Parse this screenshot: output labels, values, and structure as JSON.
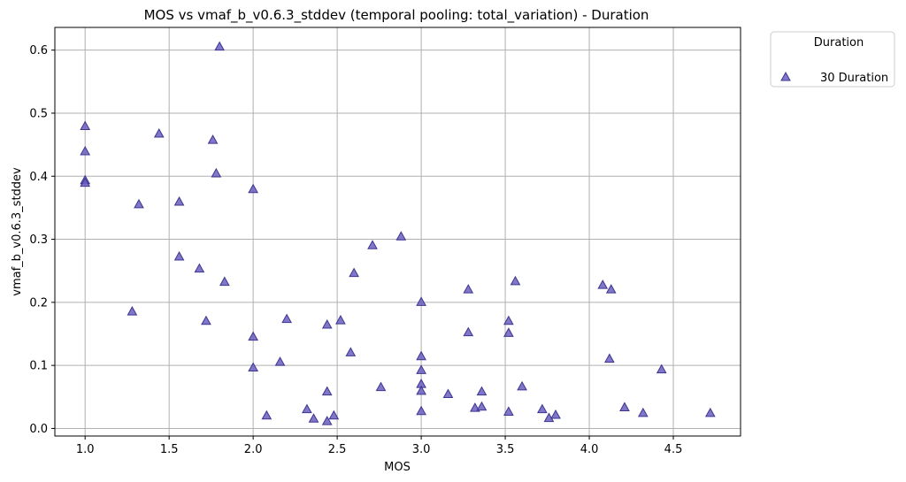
{
  "chart_data": {
    "type": "scatter",
    "title": "MOS vs vmaf_b_v0.6.3_stddev (temporal pooling: total_variation) - Duration",
    "xlabel": "MOS",
    "ylabel": "vmaf_b_v0.6.3_stddev",
    "xlim": [
      0.82,
      4.9
    ],
    "ylim": [
      -0.012,
      0.636
    ],
    "xticks": [
      1.0,
      1.5,
      2.0,
      2.5,
      3.0,
      3.5,
      4.0,
      4.5
    ],
    "xtick_labels": [
      "1.0",
      "1.5",
      "2.0",
      "2.5",
      "3.0",
      "3.5",
      "4.0",
      "4.5"
    ],
    "yticks": [
      0.0,
      0.1,
      0.2,
      0.3,
      0.4,
      0.5,
      0.6
    ],
    "ytick_labels": [
      "0.0",
      "0.1",
      "0.2",
      "0.3",
      "0.4",
      "0.5",
      "0.6"
    ],
    "grid": true,
    "legend": {
      "title": "Duration",
      "placement": "outside-top-right"
    },
    "series": [
      {
        "name": "30 Duration",
        "marker": "triangle-up",
        "color": "#6a5fbf",
        "edge_color": "#3d3490",
        "points": [
          [
            1.0,
            0.48
          ],
          [
            1.0,
            0.44
          ],
          [
            1.0,
            0.394
          ],
          [
            1.0,
            0.39
          ],
          [
            1.28,
            0.186
          ],
          [
            1.32,
            0.356
          ],
          [
            1.44,
            0.468
          ],
          [
            1.56,
            0.36
          ],
          [
            1.56,
            0.273
          ],
          [
            1.68,
            0.254
          ],
          [
            1.72,
            0.171
          ],
          [
            1.76,
            0.458
          ],
          [
            1.78,
            0.405
          ],
          [
            1.8,
            0.606
          ],
          [
            1.83,
            0.233
          ],
          [
            2.0,
            0.38
          ],
          [
            2.0,
            0.146
          ],
          [
            2.0,
            0.097
          ],
          [
            2.08,
            0.021
          ],
          [
            2.16,
            0.106
          ],
          [
            2.2,
            0.174
          ],
          [
            2.32,
            0.031
          ],
          [
            2.36,
            0.016
          ],
          [
            2.44,
            0.165
          ],
          [
            2.44,
            0.059
          ],
          [
            2.44,
            0.012
          ],
          [
            2.48,
            0.021
          ],
          [
            2.52,
            0.172
          ],
          [
            2.58,
            0.121
          ],
          [
            2.6,
            0.247
          ],
          [
            2.71,
            0.291
          ],
          [
            2.76,
            0.066
          ],
          [
            2.88,
            0.305
          ],
          [
            3.0,
            0.201
          ],
          [
            3.0,
            0.115
          ],
          [
            3.0,
            0.093
          ],
          [
            3.0,
            0.071
          ],
          [
            3.0,
            0.06
          ],
          [
            3.0,
            0.028
          ],
          [
            3.16,
            0.055
          ],
          [
            3.28,
            0.221
          ],
          [
            3.28,
            0.153
          ],
          [
            3.32,
            0.033
          ],
          [
            3.36,
            0.059
          ],
          [
            3.36,
            0.035
          ],
          [
            3.52,
            0.171
          ],
          [
            3.52,
            0.152
          ],
          [
            3.52,
            0.027
          ],
          [
            3.56,
            0.234
          ],
          [
            3.6,
            0.067
          ],
          [
            3.72,
            0.031
          ],
          [
            3.76,
            0.017
          ],
          [
            3.8,
            0.022
          ],
          [
            4.08,
            0.228
          ],
          [
            4.12,
            0.111
          ],
          [
            4.13,
            0.221
          ],
          [
            4.21,
            0.034
          ],
          [
            4.32,
            0.025
          ],
          [
            4.43,
            0.094
          ],
          [
            4.72,
            0.025
          ]
        ]
      }
    ]
  }
}
